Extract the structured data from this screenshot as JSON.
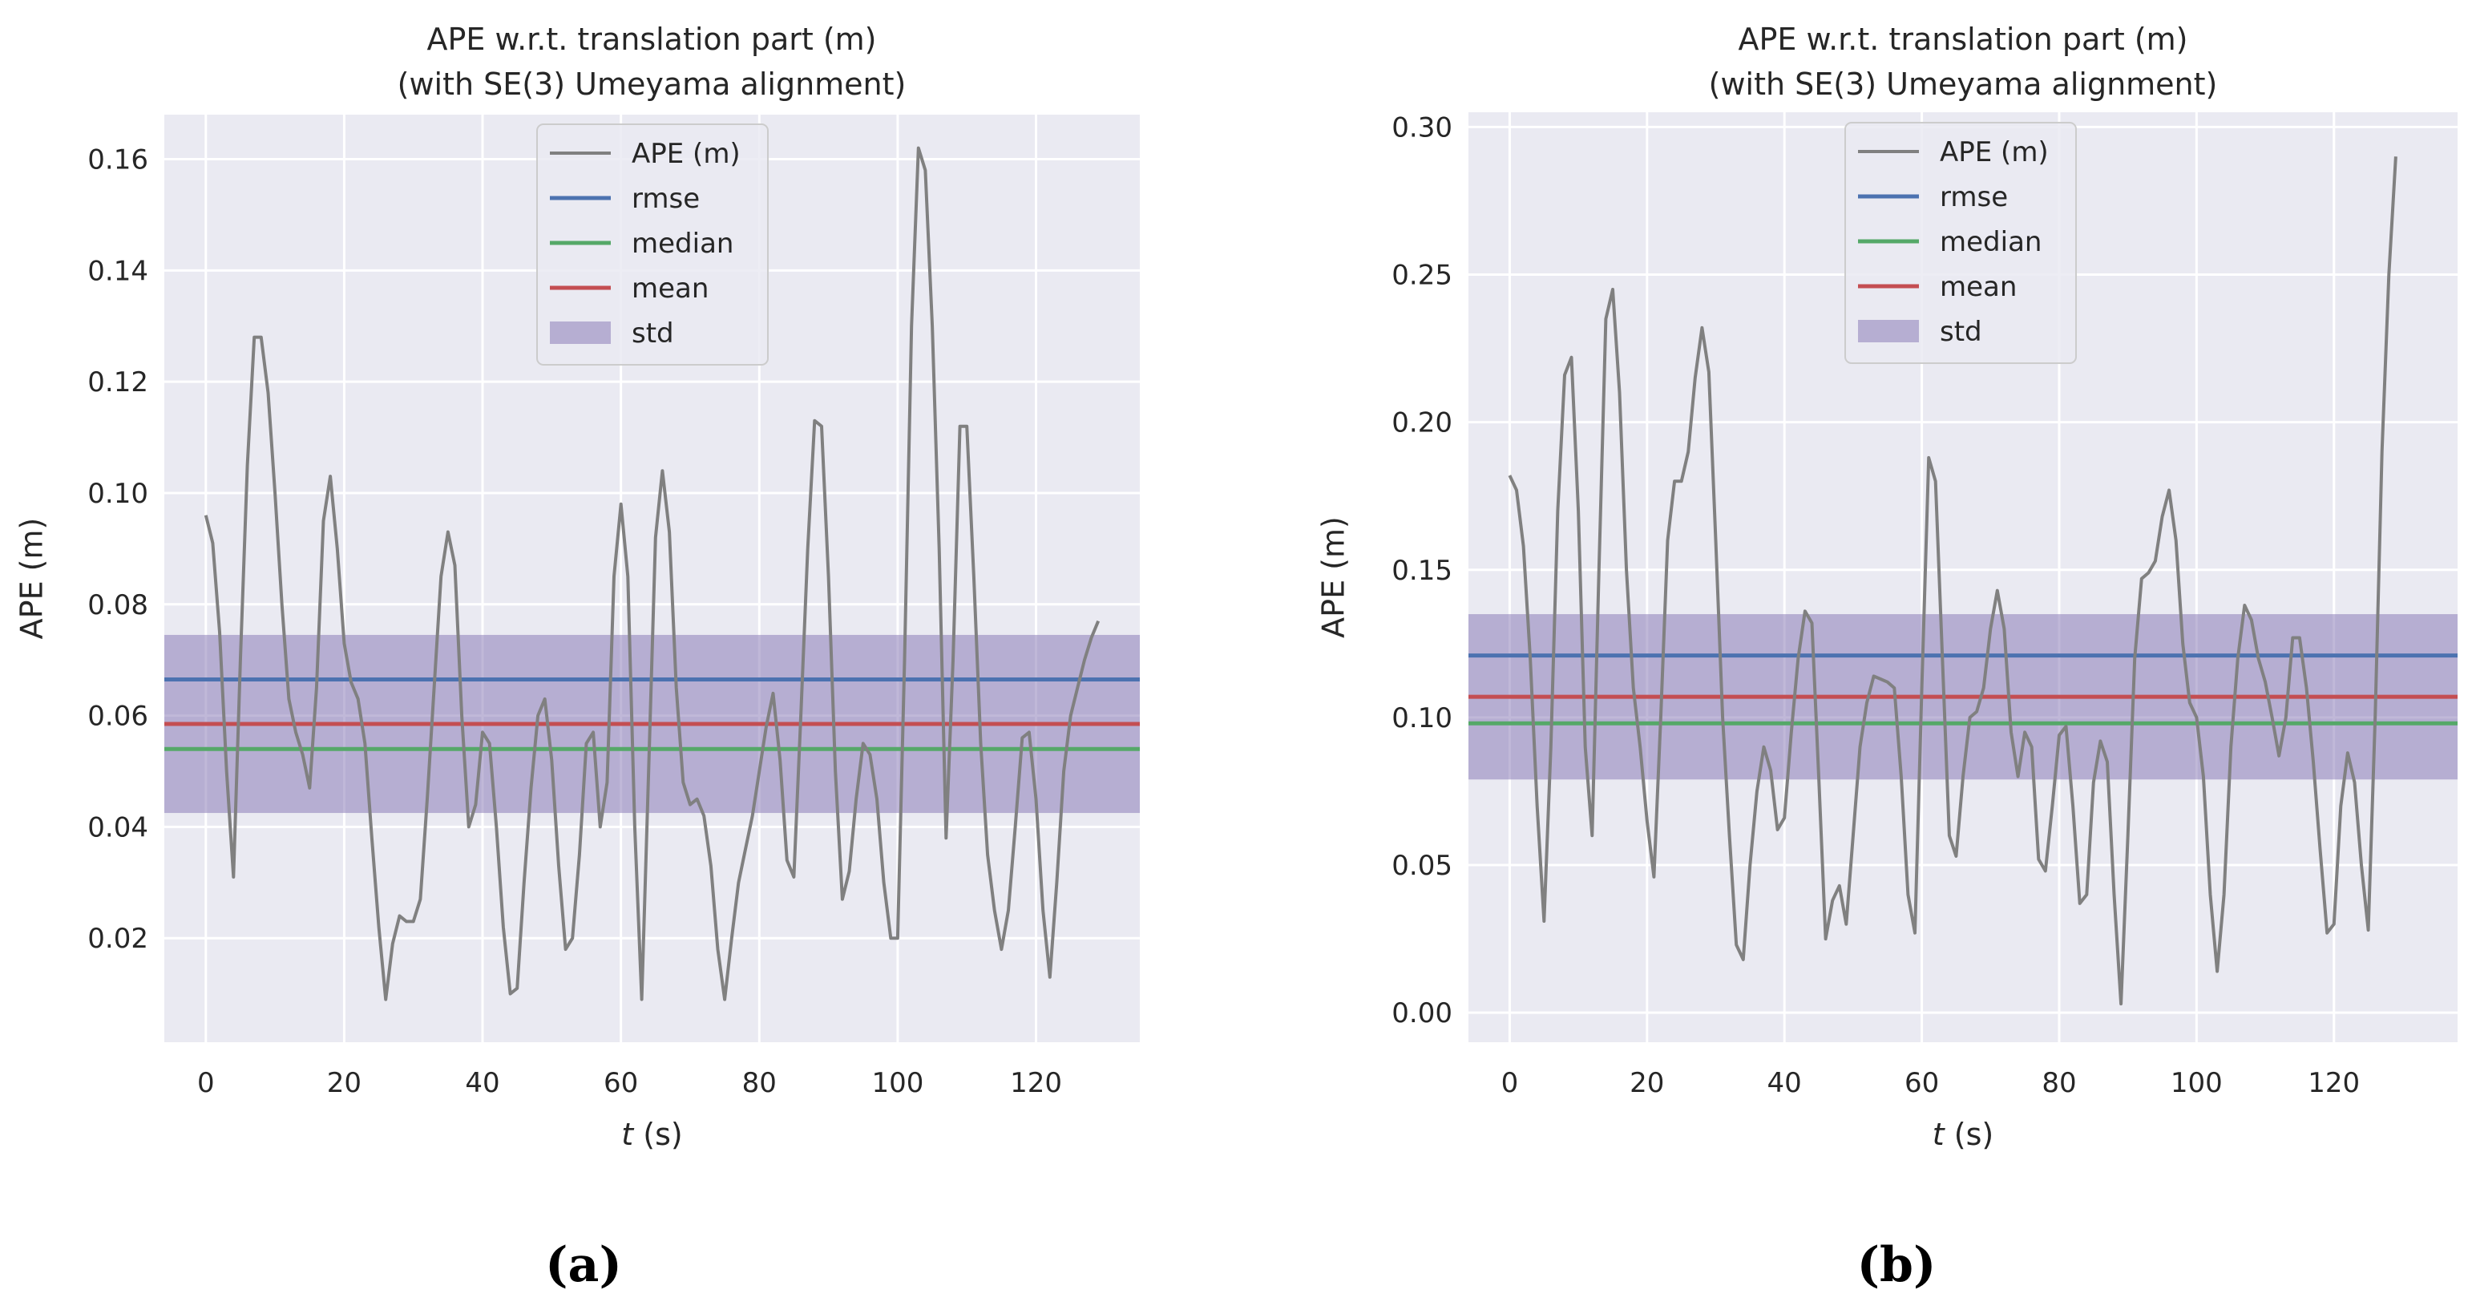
{
  "chart_data": [
    {
      "type": "line",
      "panel_label": "(a)",
      "title": "APE w.r.t. translation part (m)",
      "subtitle": "(with SE(3) Umeyama alignment)",
      "xlabel_italic": "t",
      "xlabel_rest": " (s)",
      "ylabel": "APE (m)",
      "xlim": [
        -6,
        135
      ],
      "ylim": [
        0.0013,
        0.168
      ],
      "xticks": [
        0,
        20,
        40,
        60,
        80,
        100,
        120
      ],
      "yticks": [
        0.02,
        0.04,
        0.06,
        0.08,
        0.1,
        0.12,
        0.14,
        0.16
      ],
      "ytick_labels": [
        "0.02",
        "0.04",
        "0.06",
        "0.08",
        "0.10",
        "0.12",
        "0.14",
        "0.16"
      ],
      "grid": true,
      "legend_position": "top-center",
      "legend": [
        "APE (m)",
        "rmse",
        "median",
        "mean",
        "std"
      ],
      "colors": {
        "ape": "#808080",
        "rmse": "#4c72b0",
        "median": "#55a868",
        "mean": "#c44e52",
        "std": "#8172b2",
        "background": "#eaeaf2"
      },
      "series": [
        {
          "name": "APE (m)",
          "x": [
            0,
            1,
            2,
            3,
            4,
            5,
            6,
            7,
            8,
            9,
            10,
            11,
            12,
            13,
            14,
            15,
            16,
            17,
            18,
            19,
            20,
            21,
            22,
            23,
            24,
            25,
            26,
            27,
            28,
            29,
            30,
            31,
            32,
            33,
            34,
            35,
            36,
            37,
            38,
            39,
            40,
            41,
            42,
            43,
            44,
            45,
            46,
            47,
            48,
            49,
            50,
            51,
            52,
            53,
            54,
            55,
            56,
            57,
            58,
            59,
            60,
            61,
            62,
            63,
            64,
            65,
            66,
            67,
            68,
            69,
            70,
            71,
            72,
            73,
            74,
            75,
            76,
            77,
            78,
            79,
            80,
            81,
            82,
            83,
            84,
            85,
            86,
            87,
            88,
            89,
            90,
            91,
            92,
            93,
            94,
            95,
            96,
            97,
            98,
            99,
            100,
            101,
            102,
            103,
            104,
            105,
            106,
            107,
            108,
            109,
            110,
            111,
            112,
            113,
            114,
            115,
            116,
            117,
            118,
            119,
            120,
            121,
            122,
            123,
            124,
            125,
            126,
            127,
            128,
            129
          ],
          "values": [
            0.096,
            0.091,
            0.075,
            0.05,
            0.031,
            0.07,
            0.105,
            0.128,
            0.128,
            0.118,
            0.1,
            0.08,
            0.063,
            0.057,
            0.053,
            0.047,
            0.065,
            0.095,
            0.103,
            0.09,
            0.073,
            0.066,
            0.063,
            0.055,
            0.038,
            0.022,
            0.009,
            0.019,
            0.024,
            0.023,
            0.023,
            0.027,
            0.045,
            0.065,
            0.085,
            0.093,
            0.087,
            0.06,
            0.04,
            0.044,
            0.057,
            0.055,
            0.04,
            0.022,
            0.01,
            0.011,
            0.03,
            0.047,
            0.06,
            0.063,
            0.052,
            0.033,
            0.018,
            0.02,
            0.035,
            0.055,
            0.057,
            0.04,
            0.048,
            0.085,
            0.098,
            0.085,
            0.04,
            0.009,
            0.05,
            0.092,
            0.104,
            0.093,
            0.065,
            0.048,
            0.044,
            0.045,
            0.042,
            0.033,
            0.018,
            0.009,
            0.02,
            0.03,
            0.036,
            0.042,
            0.05,
            0.058,
            0.064,
            0.052,
            0.034,
            0.031,
            0.06,
            0.09,
            0.113,
            0.112,
            0.085,
            0.05,
            0.027,
            0.032,
            0.045,
            0.055,
            0.053,
            0.045,
            0.03,
            0.02,
            0.02,
            0.07,
            0.13,
            0.162,
            0.158,
            0.13,
            0.09,
            0.038,
            0.07,
            0.112,
            0.112,
            0.085,
            0.055,
            0.035,
            0.025,
            0.018,
            0.025,
            0.04,
            0.056,
            0.057,
            0.045,
            0.025,
            0.013,
            0.03,
            0.05,
            0.06,
            0.065,
            0.07,
            0.074,
            0.077
          ]
        }
      ],
      "stats": {
        "rmse": 0.0665,
        "median": 0.054,
        "mean": 0.0585,
        "std_low": 0.0425,
        "std_high": 0.0745
      }
    },
    {
      "type": "line",
      "panel_label": "(b)",
      "title": "APE w.r.t. translation part (m)",
      "subtitle": "(with SE(3) Umeyama alignment)",
      "xlabel_italic": "t",
      "xlabel_rest": " (s)",
      "ylabel": "APE (m)",
      "xlim": [
        -6,
        138
      ],
      "ylim": [
        -0.01,
        0.305
      ],
      "xticks": [
        0,
        20,
        40,
        60,
        80,
        100,
        120
      ],
      "yticks": [
        0.0,
        0.05,
        0.1,
        0.15,
        0.2,
        0.25,
        0.3
      ],
      "ytick_labels": [
        "0.00",
        "0.05",
        "0.10",
        "0.15",
        "0.20",
        "0.25",
        "0.30"
      ],
      "grid": true,
      "legend_position": "top-center",
      "legend": [
        "APE (m)",
        "rmse",
        "median",
        "mean",
        "std"
      ],
      "colors": {
        "ape": "#808080",
        "rmse": "#4c72b0",
        "median": "#55a868",
        "mean": "#c44e52",
        "std": "#8172b2",
        "background": "#eaeaf2"
      },
      "series": [
        {
          "name": "APE (m)",
          "x": [
            0,
            1,
            2,
            3,
            4,
            5,
            6,
            7,
            8,
            9,
            10,
            11,
            12,
            13,
            14,
            15,
            16,
            17,
            18,
            19,
            20,
            21,
            22,
            23,
            24,
            25,
            26,
            27,
            28,
            29,
            30,
            31,
            32,
            33,
            34,
            35,
            36,
            37,
            38,
            39,
            40,
            41,
            42,
            43,
            44,
            45,
            46,
            47,
            48,
            49,
            50,
            51,
            52,
            53,
            54,
            55,
            56,
            57,
            58,
            59,
            60,
            61,
            62,
            63,
            64,
            65,
            66,
            67,
            68,
            69,
            70,
            71,
            72,
            73,
            74,
            75,
            76,
            77,
            78,
            79,
            80,
            81,
            82,
            83,
            84,
            85,
            86,
            87,
            88,
            89,
            90,
            91,
            92,
            93,
            94,
            95,
            96,
            97,
            98,
            99,
            100,
            101,
            102,
            103,
            104,
            105,
            106,
            107,
            108,
            109,
            110,
            111,
            112,
            113,
            114,
            115,
            116,
            117,
            118,
            119,
            120,
            121,
            122,
            123,
            124,
            125,
            126,
            127,
            128,
            129
          ],
          "values": [
            0.182,
            0.177,
            0.158,
            0.12,
            0.07,
            0.031,
            0.09,
            0.17,
            0.216,
            0.222,
            0.17,
            0.09,
            0.06,
            0.15,
            0.235,
            0.245,
            0.21,
            0.15,
            0.11,
            0.09,
            0.065,
            0.046,
            0.1,
            0.16,
            0.18,
            0.18,
            0.19,
            0.215,
            0.232,
            0.217,
            0.16,
            0.1,
            0.06,
            0.023,
            0.018,
            0.05,
            0.075,
            0.09,
            0.082,
            0.062,
            0.066,
            0.095,
            0.12,
            0.136,
            0.132,
            0.08,
            0.025,
            0.038,
            0.043,
            0.03,
            0.06,
            0.09,
            0.105,
            0.114,
            0.113,
            0.112,
            0.11,
            0.08,
            0.04,
            0.027,
            0.11,
            0.188,
            0.18,
            0.12,
            0.06,
            0.053,
            0.08,
            0.1,
            0.102,
            0.11,
            0.13,
            0.143,
            0.13,
            0.095,
            0.08,
            0.095,
            0.09,
            0.052,
            0.048,
            0.07,
            0.094,
            0.097,
            0.07,
            0.037,
            0.04,
            0.078,
            0.092,
            0.085,
            0.04,
            0.003,
            0.06,
            0.12,
            0.147,
            0.149,
            0.153,
            0.168,
            0.177,
            0.16,
            0.125,
            0.105,
            0.1,
            0.08,
            0.04,
            0.014,
            0.04,
            0.09,
            0.12,
            0.138,
            0.133,
            0.12,
            0.112,
            0.1,
            0.087,
            0.1,
            0.127,
            0.127,
            0.11,
            0.085,
            0.055,
            0.027,
            0.03,
            0.07,
            0.088,
            0.078,
            0.05,
            0.028,
            0.1,
            0.19,
            0.25,
            0.29
          ]
        }
      ],
      "stats": {
        "rmse": 0.121,
        "median": 0.098,
        "mean": 0.107,
        "std_low": 0.079,
        "std_high": 0.135
      }
    }
  ]
}
